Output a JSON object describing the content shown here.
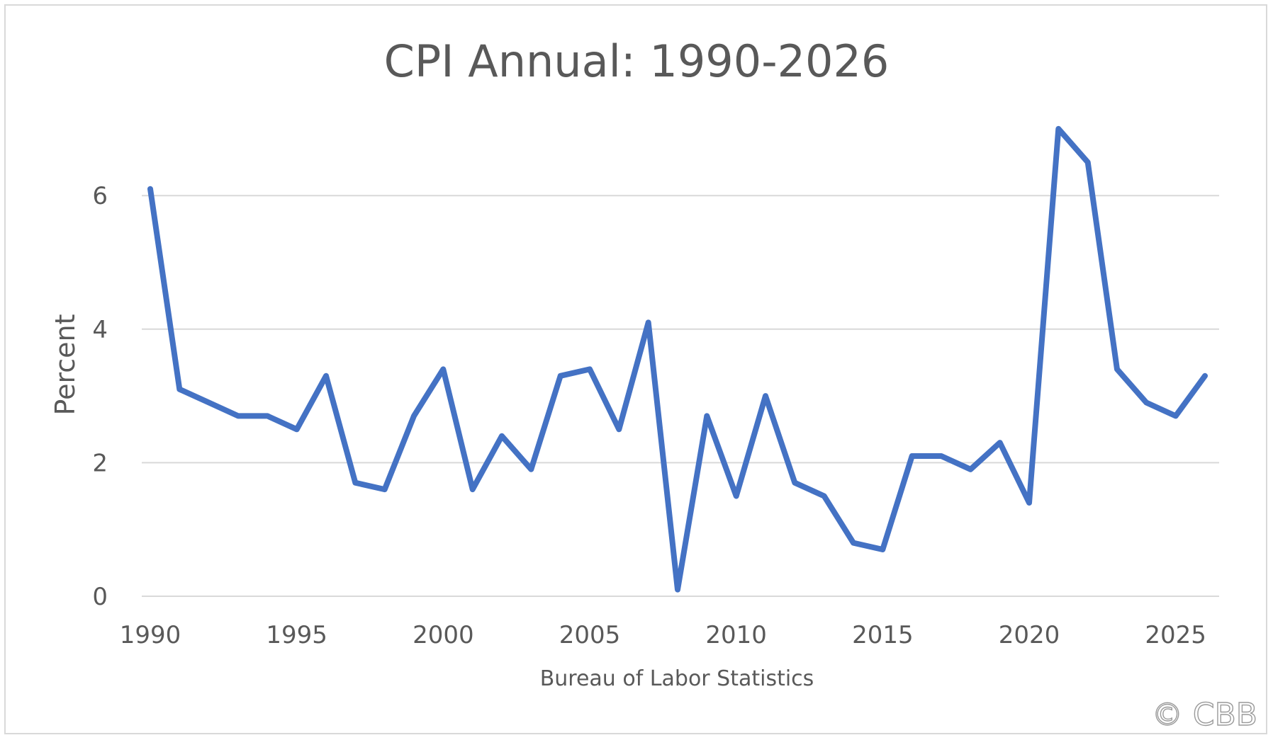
{
  "chart_data": {
    "type": "line",
    "title": "CPI Annual: 1990-2026",
    "xlabel": "Bureau of Labor Statistics",
    "ylabel": "Percent",
    "xlim": [
      1990,
      2026
    ],
    "ylim": [
      0,
      7
    ],
    "yticks": [
      0,
      2,
      4,
      6
    ],
    "xticks": [
      1990,
      1995,
      2000,
      2005,
      2010,
      2015,
      2020,
      2025
    ],
    "grid": true,
    "legend": "none",
    "series_color": "#4472c4",
    "x": [
      1990,
      1991,
      1992,
      1993,
      1994,
      1995,
      1996,
      1997,
      1998,
      1999,
      2000,
      2001,
      2002,
      2003,
      2004,
      2005,
      2006,
      2007,
      2008,
      2009,
      2010,
      2011,
      2012,
      2013,
      2014,
      2015,
      2016,
      2017,
      2018,
      2019,
      2020,
      2021,
      2022,
      2023,
      2024,
      2025,
      2026
    ],
    "y": [
      6.1,
      3.1,
      2.9,
      2.7,
      2.7,
      2.5,
      3.3,
      1.7,
      1.6,
      2.7,
      3.4,
      1.6,
      2.4,
      1.9,
      3.3,
      3.4,
      2.5,
      4.1,
      0.1,
      2.7,
      1.5,
      3.0,
      1.7,
      1.5,
      0.8,
      0.7,
      2.1,
      2.1,
      1.9,
      2.3,
      1.4,
      7.0,
      6.5,
      3.4,
      2.9,
      2.7,
      3.3
    ]
  },
  "watermark": "© CBB"
}
